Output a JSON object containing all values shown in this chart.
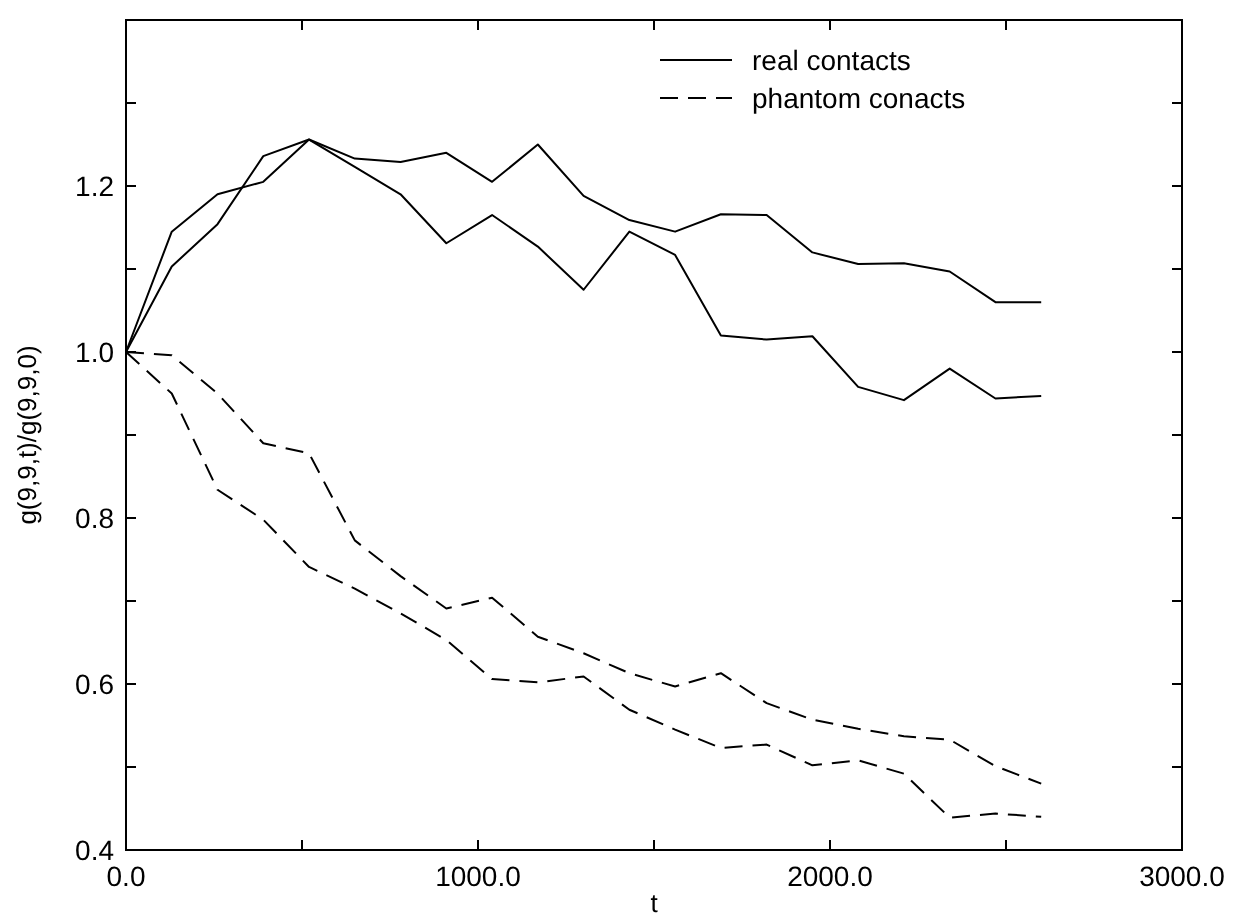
{
  "chart_data": {
    "type": "line",
    "xlabel": "t",
    "ylabel": "g(9,9,t)/g(9,9,0)",
    "x": [
      0,
      130,
      260,
      390,
      520,
      650,
      780,
      910,
      1040,
      1170,
      1300,
      1430,
      1560,
      1690,
      1820,
      1950,
      2080,
      2210,
      2340,
      2470,
      2600
    ],
    "series": [
      {
        "name": "real contacts",
        "color": "#000000",
        "line_style": "solid",
        "values": [
          1.0,
          1.145,
          1.19,
          1.205,
          1.256,
          1.233,
          1.229,
          1.24,
          1.205,
          1.25,
          1.188,
          1.159,
          1.145,
          1.166,
          1.165,
          1.12,
          1.106,
          1.107,
          1.097,
          1.06,
          1.06
        ]
      },
      {
        "color": "#000000",
        "line_style": "solid",
        "values": [
          1.0,
          1.103,
          1.154,
          1.236,
          1.256,
          1.223,
          1.19,
          1.131,
          1.165,
          1.127,
          1.075,
          1.145,
          1.117,
          1.02,
          1.015,
          1.019,
          0.958,
          0.942,
          0.98,
          0.944,
          0.947
        ]
      },
      {
        "name": "phantom conacts",
        "color": "#000000",
        "line_style": "dashed",
        "values": [
          1.0,
          0.996,
          0.95,
          0.89,
          0.878,
          0.773,
          0.73,
          0.691,
          0.704,
          0.657,
          0.637,
          0.613,
          0.597,
          0.613,
          0.577,
          0.557,
          0.546,
          0.537,
          0.533,
          0.501,
          0.48
        ]
      },
      {
        "color": "#000000",
        "line_style": "dashed",
        "values": [
          1.0,
          0.95,
          0.834,
          0.798,
          0.741,
          0.715,
          0.685,
          0.653,
          0.606,
          0.602,
          0.609,
          0.569,
          0.545,
          0.523,
          0.527,
          0.502,
          0.508,
          0.492,
          0.439,
          0.444,
          0.44
        ]
      }
    ],
    "xlim": [
      0,
      3000
    ],
    "xticks": [
      {
        "value": 0,
        "label": "0.0"
      },
      {
        "value": 500,
        "label": null
      },
      {
        "value": 1000,
        "label": "1000.0"
      },
      {
        "value": 1500,
        "label": null
      },
      {
        "value": 2000,
        "label": "2000.0"
      },
      {
        "value": 2500,
        "label": null
      },
      {
        "value": 3000,
        "label": "3000.0"
      }
    ],
    "ylim": [
      0.4,
      1.4
    ],
    "yticks": [
      {
        "value": 0.4,
        "label": "0.4"
      },
      {
        "value": 0.5,
        "label": null
      },
      {
        "value": 0.6,
        "label": "0.6"
      },
      {
        "value": 0.7,
        "label": null
      },
      {
        "value": 0.8,
        "label": "0.8"
      },
      {
        "value": 0.9,
        "label": null
      },
      {
        "value": 1.0,
        "label": "1.0"
      },
      {
        "value": 1.1,
        "label": null
      },
      {
        "value": 1.2,
        "label": "1.2"
      },
      {
        "value": 1.3,
        "label": null
      },
      {
        "value": 1.4,
        "label": null
      }
    ],
    "grid": false,
    "legend": "top right"
  }
}
